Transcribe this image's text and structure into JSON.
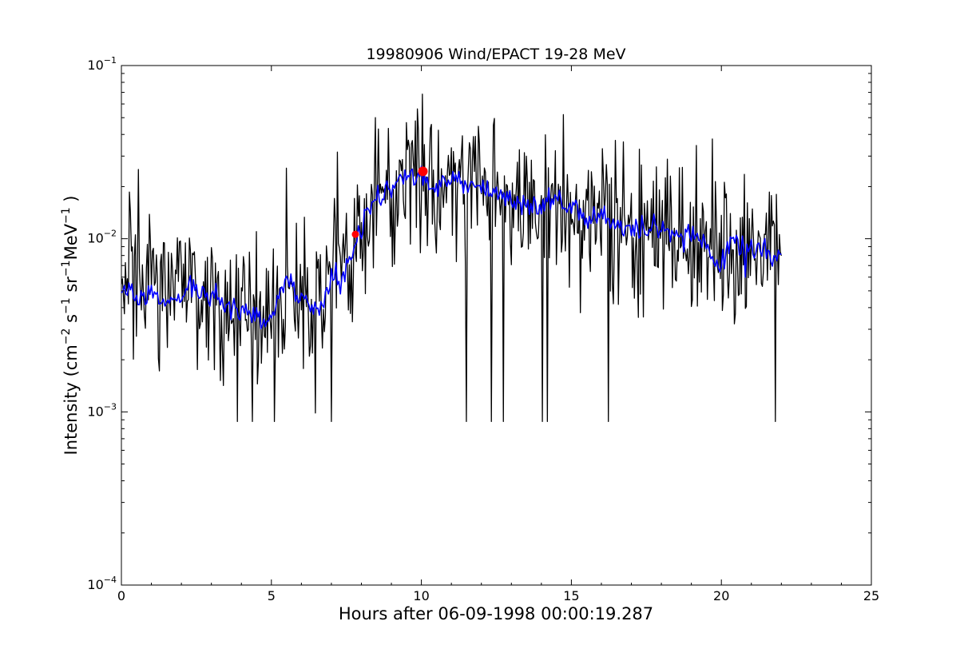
{
  "chart_data": {
    "type": "line",
    "title": "19980906 Wind/EPACT 19-28 MeV",
    "xlabel": "Hours after 06-09-1998 00:00:19.287",
    "ylabel_main": "Intensity (cm",
    "ylabel_parts": [
      "−2",
      " s",
      "−1",
      " sr",
      "−1",
      "MeV",
      "−1",
      " )"
    ],
    "xlim": [
      0,
      25
    ],
    "ylim": [
      0.0001,
      0.1
    ],
    "yscale": "log",
    "grid": false,
    "x_ticks": [
      0,
      5,
      10,
      15,
      20,
      25
    ],
    "x_tick_labels": [
      "0",
      "5",
      "10",
      "15",
      "20",
      "25"
    ],
    "y_ticks": [
      0.0001,
      0.001,
      0.01,
      0.1
    ],
    "y_tick_labels": [
      {
        "base": "10",
        "exp": "−4"
      },
      {
        "base": "10",
        "exp": "−3"
      },
      {
        "base": "10",
        "exp": "−2"
      },
      {
        "base": "10",
        "exp": "−1"
      }
    ],
    "series": [
      {
        "color": "#000000",
        "style": "raw",
        "anchors": [
          [
            0.0,
            0.0046
          ],
          [
            0.5,
            0.0048
          ],
          [
            1.0,
            0.0046
          ],
          [
            2.0,
            0.0047
          ],
          [
            3.0,
            0.0046
          ],
          [
            3.5,
            0.0043
          ],
          [
            4.0,
            0.0039
          ],
          [
            4.5,
            0.0036
          ],
          [
            5.0,
            0.0038
          ],
          [
            5.5,
            0.0055
          ],
          [
            6.0,
            0.0043
          ],
          [
            6.5,
            0.0044
          ],
          [
            7.0,
            0.0055
          ],
          [
            7.5,
            0.0072
          ],
          [
            8.0,
            0.011
          ],
          [
            8.5,
            0.017
          ],
          [
            9.0,
            0.02
          ],
          [
            9.5,
            0.021
          ],
          [
            10.0,
            0.022
          ],
          [
            10.5,
            0.02
          ],
          [
            11.0,
            0.022
          ],
          [
            11.5,
            0.021
          ],
          [
            12.0,
            0.02
          ],
          [
            12.5,
            0.018
          ],
          [
            13.0,
            0.017
          ],
          [
            13.5,
            0.016
          ],
          [
            14.0,
            0.0155
          ],
          [
            14.5,
            0.015
          ],
          [
            15.0,
            0.0148
          ],
          [
            15.5,
            0.013
          ],
          [
            16.0,
            0.0128
          ],
          [
            16.5,
            0.012
          ],
          [
            17.0,
            0.0115
          ],
          [
            17.5,
            0.011
          ],
          [
            18.0,
            0.0108
          ],
          [
            18.5,
            0.0105
          ],
          [
            19.0,
            0.0102
          ],
          [
            19.5,
            0.0095
          ],
          [
            20.0,
            0.0085
          ],
          [
            20.5,
            0.009
          ],
          [
            21.0,
            0.0088
          ],
          [
            21.5,
            0.0085
          ],
          [
            22.0,
            0.0083
          ]
        ],
        "x_end": 22.0,
        "n_points": 660,
        "noise_sigma": 0.22,
        "min_value": 0.00088
      },
      {
        "color": "#0000ff",
        "style": "smoothed",
        "anchors": [
          [
            0.0,
            0.0045
          ],
          [
            0.3,
            0.0052
          ],
          [
            0.6,
            0.0045
          ],
          [
            1.0,
            0.0046
          ],
          [
            1.5,
            0.0043
          ],
          [
            2.0,
            0.0047
          ],
          [
            2.3,
            0.0055
          ],
          [
            2.7,
            0.0046
          ],
          [
            3.0,
            0.0048
          ],
          [
            3.5,
            0.0042
          ],
          [
            3.9,
            0.0038
          ],
          [
            4.3,
            0.0037
          ],
          [
            4.7,
            0.0033
          ],
          [
            5.0,
            0.0034
          ],
          [
            5.3,
            0.005
          ],
          [
            5.5,
            0.006
          ],
          [
            5.8,
            0.0045
          ],
          [
            6.2,
            0.0043
          ],
          [
            6.6,
            0.004
          ],
          [
            7.0,
            0.0056
          ],
          [
            7.4,
            0.006
          ],
          [
            7.8,
            0.0095
          ],
          [
            8.2,
            0.014
          ],
          [
            8.6,
            0.018
          ],
          [
            9.0,
            0.02
          ],
          [
            9.4,
            0.022
          ],
          [
            9.8,
            0.022
          ],
          [
            10.0,
            0.024
          ],
          [
            10.3,
            0.019
          ],
          [
            10.8,
            0.023
          ],
          [
            11.2,
            0.022
          ],
          [
            11.6,
            0.021
          ],
          [
            12.0,
            0.02
          ],
          [
            12.4,
            0.019
          ],
          [
            12.8,
            0.017
          ],
          [
            13.2,
            0.016
          ],
          [
            13.6,
            0.016
          ],
          [
            14.0,
            0.015
          ],
          [
            14.4,
            0.018
          ],
          [
            14.8,
            0.015
          ],
          [
            15.2,
            0.015
          ],
          [
            15.5,
            0.012
          ],
          [
            15.8,
            0.0135
          ],
          [
            16.2,
            0.013
          ],
          [
            16.6,
            0.012
          ],
          [
            17.0,
            0.0108
          ],
          [
            17.4,
            0.011
          ],
          [
            17.8,
            0.0115
          ],
          [
            18.2,
            0.0105
          ],
          [
            18.6,
            0.0103
          ],
          [
            19.0,
            0.0105
          ],
          [
            19.4,
            0.0095
          ],
          [
            19.8,
            0.0078
          ],
          [
            20.0,
            0.0068
          ],
          [
            20.3,
            0.0095
          ],
          [
            20.7,
            0.009
          ],
          [
            21.0,
            0.0085
          ],
          [
            21.4,
            0.009
          ],
          [
            21.8,
            0.0078
          ],
          [
            22.0,
            0.0076
          ]
        ],
        "x_end": 22.0
      }
    ],
    "markers": [
      {
        "x": 7.8,
        "y": 0.0106,
        "color": "#ff0000",
        "size": "small"
      },
      {
        "x": 10.05,
        "y": 0.0245,
        "color": "#ff0000",
        "size": "large"
      }
    ]
  }
}
